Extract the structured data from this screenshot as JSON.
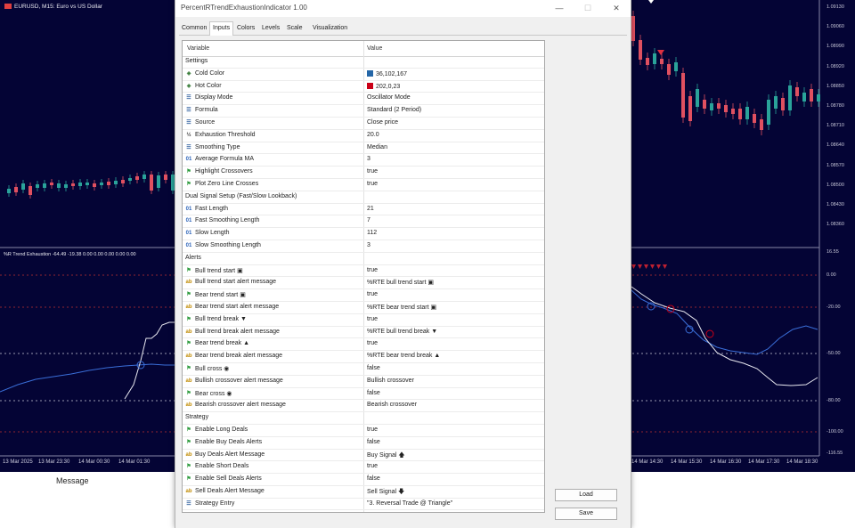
{
  "chart": {
    "symbol": "EURUSD, M15:  Euro vs US Dollar",
    "indicator_label": "%R Trend Exhaustion -64.49 -19.38 0.00 0.00 0.00 0.00 0.00",
    "price_labels": [
      "1.09130",
      "1.09060",
      "1.08990",
      "1.08920",
      "1.08850",
      "1.08780",
      "1.08710",
      "1.08640",
      "1.08570",
      "1.08500",
      "1.08430",
      "1.08360"
    ],
    "indicator_scale": [
      "16.55",
      "0.00",
      "-20.00",
      "-50.00",
      "-80.00",
      "-100.00",
      "-116.55"
    ],
    "time_labels_left": [
      "13 Mar 2025",
      "13 Mar 23:30",
      "14 Mar 00:30",
      "14 Mar 01:30"
    ],
    "time_labels_right": [
      "14 Mar 14:30",
      "14 Mar 15:30",
      "14 Mar 16:30",
      "14 Mar 17:30",
      "14 Mar 18:30"
    ],
    "colors": {
      "cold": "#2466a7",
      "hot": "#ca0017",
      "background": "#040435"
    }
  },
  "bottom": {
    "message_label": "Message"
  },
  "dialog": {
    "title": "PercentRTrendExhaustionIndicator 1.00",
    "tabs": [
      "Common",
      "Inputs",
      "Colors",
      "Levels",
      "Scale",
      "Visualization"
    ],
    "active_tab": "Inputs",
    "columns": {
      "variable": "Variable",
      "value": "Value"
    },
    "rows": [
      {
        "type": "section",
        "name": "Settings"
      },
      {
        "icon": "palette",
        "name": "Cold Color",
        "value": "36,102,167",
        "swatch": "#2466a7"
      },
      {
        "icon": "palette",
        "name": "Hot Color",
        "value": "202,0,23",
        "swatch": "#ca0017"
      },
      {
        "icon": "enum",
        "name": "Display Mode",
        "value": "Oscillator Mode"
      },
      {
        "icon": "enum",
        "name": "Formula",
        "value": "Standard (2 Period)"
      },
      {
        "icon": "enum",
        "name": "Source",
        "value": "Close price"
      },
      {
        "icon": "fraction",
        "name": "Exhaustion Threshold",
        "value": "20.0"
      },
      {
        "icon": "enum",
        "name": "Smoothing Type",
        "value": "Median"
      },
      {
        "icon": "int",
        "name": "Average Formula MA",
        "value": "3"
      },
      {
        "icon": "bool",
        "name": "Highlight Crossovers",
        "value": "true"
      },
      {
        "icon": "bool",
        "name": "Plot Zero Line Crosses",
        "value": "true"
      },
      {
        "type": "section",
        "name": "Dual Signal Setup (Fast/Slow Lookback)"
      },
      {
        "icon": "int",
        "name": "Fast Length",
        "value": "21"
      },
      {
        "icon": "int",
        "name": "Fast Smoothing Length",
        "value": "7"
      },
      {
        "icon": "int",
        "name": "Slow Length",
        "value": "112"
      },
      {
        "icon": "int",
        "name": "Slow Smoothing Length",
        "value": "3"
      },
      {
        "type": "section",
        "name": "Alerts"
      },
      {
        "icon": "bool",
        "name": "Bull trend start ▣",
        "value": "true"
      },
      {
        "icon": "string",
        "name": "Bull trend start alert message",
        "value": "%RTE bull trend start ▣"
      },
      {
        "icon": "bool",
        "name": "Bear trend start ▣",
        "value": "true"
      },
      {
        "icon": "string",
        "name": "Bear trend start alert message",
        "value": "%RTE bear trend start ▣"
      },
      {
        "icon": "bool",
        "name": "Bull trend break ▼",
        "value": "true"
      },
      {
        "icon": "string",
        "name": "Bull trend break alert message",
        "value": "%RTE bull trend break ▼"
      },
      {
        "icon": "bool",
        "name": "Bear trend break ▲",
        "value": "true"
      },
      {
        "icon": "string",
        "name": "Bear trend break alert message",
        "value": "%RTE bear trend break ▲"
      },
      {
        "icon": "bool",
        "name": "Bull cross ◉",
        "value": "false"
      },
      {
        "icon": "string",
        "name": "Bullish crossover alert message",
        "value": "Bullish crossover"
      },
      {
        "icon": "bool",
        "name": "Bear cross ◉",
        "value": "false"
      },
      {
        "icon": "string",
        "name": "Bearish crossover alert message",
        "value": "Bearish crossover"
      },
      {
        "type": "section",
        "name": "Strategy"
      },
      {
        "icon": "bool",
        "name": "Enable Long Deals",
        "value": "true"
      },
      {
        "icon": "bool",
        "name": "Enable Buy Deals Alerts",
        "value": "false"
      },
      {
        "icon": "string",
        "name": "Buy Deals Alert Message",
        "value": "Buy Signal 🡅"
      },
      {
        "icon": "bool",
        "name": "Enable Short Deals",
        "value": "true"
      },
      {
        "icon": "bool",
        "name": "Enable Sell Deals Alerts",
        "value": "false"
      },
      {
        "icon": "string",
        "name": "Sell Deals Alert Message",
        "value": "Sell Signal 🡇"
      },
      {
        "icon": "enum",
        "name": "Strategy Entry",
        "value": "\"3. Reversal Trade @ Triangle\""
      }
    ],
    "buttons": {
      "load": "Load",
      "save": "Save"
    }
  }
}
